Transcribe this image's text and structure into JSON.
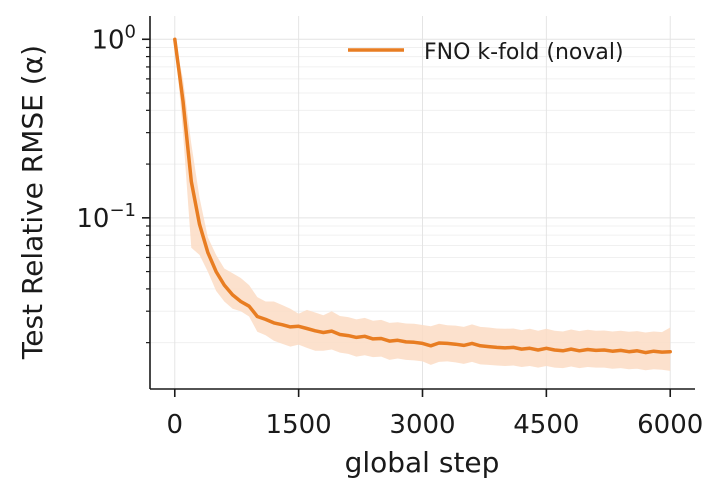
{
  "chart_data": {
    "type": "line",
    "title": "",
    "xlabel": "global step",
    "ylabel": "Test Relative RMSE (α)",
    "xlim": [
      -300,
      6300
    ],
    "xticks": [
      0,
      1500,
      3000,
      4500,
      6000
    ],
    "xtick_labels": [
      "0",
      "1500",
      "3000",
      "4500",
      "6000"
    ],
    "yscale": "log",
    "ylim": [
      0.011,
      1.35
    ],
    "yticks": [
      0.1,
      1.0
    ],
    "ytick_labels": [
      {
        "base": "10",
        "exp": "−1"
      },
      {
        "base": "10",
        "exp": "0"
      }
    ],
    "grid": true,
    "legend_position": "top-right",
    "series": [
      {
        "name": "FNO k-fold (noval)",
        "color": "#e87d22",
        "band_color": "#fbdcc4",
        "x": [
          0,
          100,
          200,
          300,
          400,
          500,
          600,
          700,
          800,
          900,
          1000,
          1100,
          1200,
          1300,
          1400,
          1500,
          1600,
          1700,
          1800,
          1900,
          2000,
          2100,
          2200,
          2300,
          2400,
          2500,
          2600,
          2700,
          2800,
          2900,
          3000,
          3100,
          3200,
          3300,
          3400,
          3500,
          3600,
          3700,
          3800,
          3900,
          4000,
          4100,
          4200,
          4300,
          4400,
          4500,
          4600,
          4700,
          4800,
          4900,
          5000,
          5100,
          5200,
          5300,
          5400,
          5500,
          5600,
          5700,
          5800,
          5900,
          6000
        ],
        "y": [
          1.0,
          0.45,
          0.16,
          0.092,
          0.064,
          0.05,
          0.042,
          0.037,
          0.034,
          0.032,
          0.028,
          0.027,
          0.0258,
          0.0252,
          0.0245,
          0.0247,
          0.024,
          0.0233,
          0.0228,
          0.0232,
          0.0222,
          0.0219,
          0.0214,
          0.0217,
          0.021,
          0.0211,
          0.0204,
          0.0206,
          0.0202,
          0.0201,
          0.0198,
          0.0192,
          0.0199,
          0.0198,
          0.0196,
          0.0193,
          0.0198,
          0.0192,
          0.019,
          0.0188,
          0.0187,
          0.0188,
          0.0184,
          0.0186,
          0.0182,
          0.0186,
          0.0182,
          0.018,
          0.0184,
          0.018,
          0.0183,
          0.0181,
          0.0182,
          0.0179,
          0.0181,
          0.0178,
          0.018,
          0.0176,
          0.0179,
          0.0177,
          0.0178
        ],
        "lower": [
          1.0,
          0.3,
          0.068,
          0.062,
          0.05,
          0.039,
          0.034,
          0.031,
          0.03,
          0.028,
          0.023,
          0.022,
          0.0205,
          0.0197,
          0.019,
          0.0195,
          0.0187,
          0.018,
          0.018,
          0.0183,
          0.0176,
          0.0173,
          0.0167,
          0.017,
          0.0166,
          0.0167,
          0.016,
          0.0163,
          0.016,
          0.0159,
          0.0157,
          0.015,
          0.0156,
          0.0157,
          0.0155,
          0.0152,
          0.0156,
          0.0151,
          0.015,
          0.0149,
          0.0148,
          0.0149,
          0.0146,
          0.0148,
          0.0145,
          0.0148,
          0.0145,
          0.0144,
          0.0147,
          0.0144,
          0.0146,
          0.0145,
          0.0145,
          0.0143,
          0.0144,
          0.0142,
          0.0143,
          0.014,
          0.0142,
          0.0141,
          0.0139
        ],
        "upper": [
          1.0,
          0.6,
          0.26,
          0.13,
          0.078,
          0.062,
          0.052,
          0.049,
          0.046,
          0.042,
          0.036,
          0.034,
          0.034,
          0.0325,
          0.031,
          0.029,
          0.0305,
          0.0295,
          0.0285,
          0.03,
          0.0282,
          0.0278,
          0.027,
          0.0275,
          0.0265,
          0.0268,
          0.0258,
          0.026,
          0.0256,
          0.0255,
          0.0251,
          0.0247,
          0.0255,
          0.025,
          0.0249,
          0.0245,
          0.0253,
          0.0245,
          0.0243,
          0.024,
          0.0239,
          0.024,
          0.0235,
          0.0239,
          0.0233,
          0.0239,
          0.0233,
          0.0231,
          0.0237,
          0.0232,
          0.0236,
          0.0233,
          0.0234,
          0.0231,
          0.0233,
          0.023,
          0.0232,
          0.0228,
          0.0231,
          0.0229,
          0.0243
        ]
      }
    ]
  }
}
